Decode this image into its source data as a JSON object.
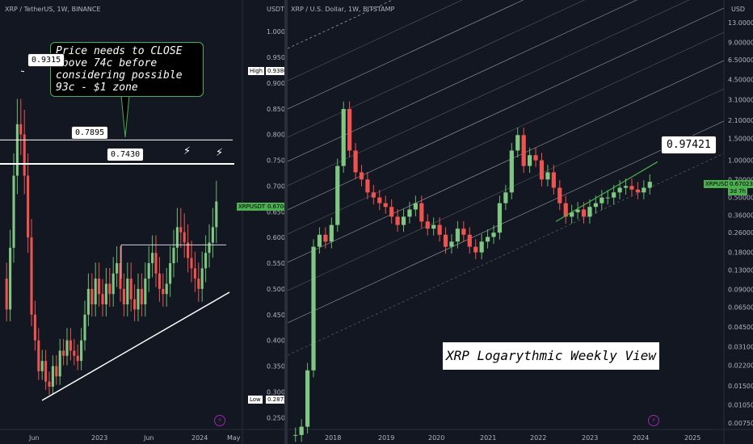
{
  "left": {
    "header": "XRP / TetherUS, 1W, BINANCE",
    "currency": "USDT",
    "callout": "Price needs to CLOSE above 74c before considering possible 93c - $1 zone",
    "price_boxes": [
      "0.9315",
      "0.7895",
      "0.7430"
    ],
    "ticker_tag": "XRPUSDT",
    "ticker_price": "0.6704",
    "high_label": "High",
    "high_value": "0.9380",
    "low_label": "Low",
    "low_value": "0.2872",
    "lightning": "⚡"
  },
  "right": {
    "header": "XRP / U.S. Dollar, 1W, BITSTAMP",
    "currency": "USD",
    "target_box": "0.97421",
    "ticker_tag": "XRPUSD",
    "ticker_price": "0.67023",
    "ticker_time": "3d 7h",
    "title": "XRP Logarythmic Weekly View"
  },
  "colors": {
    "background": "#131722",
    "up_candle": "#81c784",
    "down_candle": "#ef5350",
    "wick_up": "#66bb6a",
    "channel_line": "#d1d4dc",
    "trend_green": "#4caf50"
  },
  "chart_data": [
    {
      "type": "candlestick",
      "title": "XRP / TetherUS, 1W, BINANCE",
      "ylabel": "USDT",
      "y_ticks": [
        "1.0000",
        "0.9500",
        "0.9000",
        "0.8500",
        "0.8000",
        "0.7500",
        "0.7000",
        "0.6500",
        "0.6000",
        "0.5500",
        "0.5000",
        "0.4500",
        "0.4000",
        "0.3500",
        "0.3000",
        "0.2500"
      ],
      "ylim": [
        0.23,
        1.03
      ],
      "x_ticks": [
        "Jun",
        "2023",
        "Jun",
        "2024",
        "May"
      ],
      "levels": [
        0.9315,
        0.7895,
        0.743
      ],
      "current_price": 0.6704,
      "high": 0.938,
      "low": 0.2872,
      "approx_close_series": [
        0.46,
        0.58,
        0.72,
        0.82,
        0.8,
        0.72,
        0.6,
        0.45,
        0.4,
        0.34,
        0.36,
        0.32,
        0.31,
        0.35,
        0.33,
        0.38,
        0.37,
        0.4,
        0.38,
        0.37,
        0.36,
        0.4,
        0.45,
        0.5,
        0.47,
        0.52,
        0.49,
        0.47,
        0.51,
        0.49,
        0.53,
        0.55,
        0.5,
        0.47,
        0.52,
        0.48,
        0.46,
        0.5,
        0.47,
        0.52,
        0.55,
        0.57,
        0.53,
        0.5,
        0.49,
        0.51,
        0.55,
        0.58,
        0.62,
        0.61,
        0.59,
        0.56,
        0.54,
        0.52,
        0.5,
        0.54,
        0.57,
        0.59,
        0.62,
        0.67
      ]
    },
    {
      "type": "candlestick",
      "title": "XRP / U.S. Dollar, 1W, BITSTAMP",
      "ylabel": "USD",
      "scale": "log",
      "y_ticks": [
        "13.00000",
        "9.00000",
        "6.50000",
        "4.50000",
        "3.10000",
        "2.10000",
        "1.50000",
        "1.00000",
        "0.70000",
        "0.50000",
        "0.36000",
        "0.26000",
        "0.18000",
        "0.13000",
        "0.09000",
        "0.06500",
        "0.04500",
        "0.03100",
        "0.02200",
        "0.01500",
        "0.01050",
        "0.00750"
      ],
      "x_ticks": [
        "2018",
        "2019",
        "2020",
        "2021",
        "2022",
        "2023",
        "2024",
        "2025"
      ],
      "target": 0.97421,
      "current_price": 0.67023,
      "approx_close_series": [
        0.006,
        0.007,
        0.02,
        0.2,
        0.25,
        0.22,
        0.3,
        0.9,
        2.6,
        1.2,
        0.8,
        0.7,
        0.55,
        0.5,
        0.45,
        0.42,
        0.35,
        0.3,
        0.35,
        0.4,
        0.45,
        0.32,
        0.28,
        0.3,
        0.25,
        0.2,
        0.22,
        0.28,
        0.25,
        0.2,
        0.18,
        0.22,
        0.24,
        0.26,
        0.45,
        0.55,
        1.2,
        1.6,
        0.9,
        1.1,
        1.0,
        0.7,
        0.8,
        0.6,
        0.45,
        0.35,
        0.38,
        0.4,
        0.35,
        0.42,
        0.45,
        0.5,
        0.5,
        0.55,
        0.6,
        0.62,
        0.58,
        0.55,
        0.6,
        0.67
      ]
    }
  ]
}
